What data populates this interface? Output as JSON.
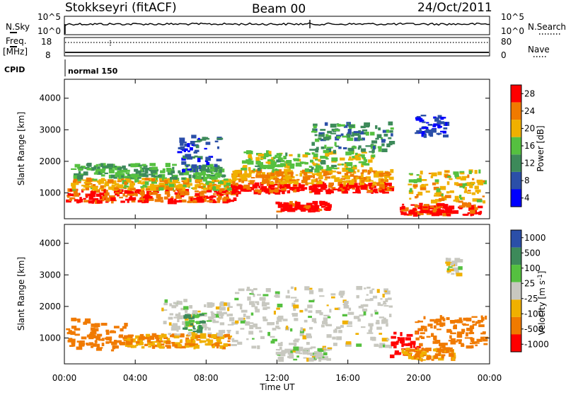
{
  "header": {
    "station": "Stokkseyri (fitACF)",
    "beam": "Beam 00",
    "date": "24/Oct/2011"
  },
  "noise_panel": {
    "left_label": "N.Sky",
    "right_label": "N.Search",
    "left_ticks": [
      "10^5",
      "10^0"
    ],
    "right_ticks": [
      "10^5",
      "10^0"
    ]
  },
  "freq_panel": {
    "left_label_1": "Freq.",
    "left_label_2": "[MHz]",
    "left_ticks": [
      "18",
      "8"
    ],
    "right_label": "Nave",
    "right_ticks": [
      "80",
      "0"
    ]
  },
  "cpid_panel": {
    "label": "CPID",
    "value": "normal 150"
  },
  "colors": {
    "power_scale": [
      "#0000ff",
      "#2b4fa8",
      "#3d8a5a",
      "#55c040",
      "#f0b000",
      "#f07a00",
      "#ff0000"
    ],
    "velocity_scale": [
      "#ff0000",
      "#f07a00",
      "#f0b000",
      "#c8c8c0",
      "#55c040",
      "#3d8a5a",
      "#2b4fa8"
    ]
  },
  "chart_data": [
    {
      "type": "heatmap",
      "title": "",
      "xlabel": "",
      "ylabel": "Slant Range [km]",
      "xlim": [
        0,
        24
      ],
      "ylim": [
        180,
        4600
      ],
      "x_ticks": [
        "00:00",
        "04:00",
        "08:00",
        "12:00",
        "16:00",
        "20:00",
        "00:00"
      ],
      "y_ticks": [
        "1000",
        "2000",
        "3000",
        "4000"
      ],
      "colorbar": {
        "label": "Power [dB]",
        "tick_labels": [
          "4",
          "8",
          "12",
          "16",
          "20",
          "24",
          "28"
        ]
      },
      "regions": [
        {
          "t": [
            0.2,
            9.8
          ],
          "r": [
            700,
            1100
          ],
          "value": 26
        },
        {
          "t": [
            0.5,
            9.5
          ],
          "r": [
            1100,
            1450
          ],
          "value": 20
        },
        {
          "t": [
            0.5,
            9.0
          ],
          "r": [
            1450,
            1900
          ],
          "value": 14
        },
        {
          "t": [
            6.5,
            8.8
          ],
          "r": [
            1700,
            2800
          ],
          "value": 8
        },
        {
          "t": [
            9.5,
            18.5
          ],
          "r": [
            1000,
            1300
          ],
          "value": 28
        },
        {
          "t": [
            9.5,
            18.5
          ],
          "r": [
            1300,
            1700
          ],
          "value": 22
        },
        {
          "t": [
            10.0,
            17.5
          ],
          "r": [
            1700,
            2300
          ],
          "value": 17
        },
        {
          "t": [
            12.0,
            15.0
          ],
          "r": [
            400,
            700
          ],
          "value": 28
        },
        {
          "t": [
            14.0,
            18.5
          ],
          "r": [
            2300,
            3200
          ],
          "value": 12
        },
        {
          "t": [
            19.0,
            23.5
          ],
          "r": [
            300,
            650
          ],
          "value": 27
        },
        {
          "t": [
            19.5,
            23.8
          ],
          "r": [
            700,
            1700
          ],
          "value": 20
        },
        {
          "t": [
            19.8,
            21.6
          ],
          "r": [
            2800,
            3450
          ],
          "value": 6
        }
      ]
    },
    {
      "type": "heatmap",
      "title": "",
      "xlabel": "Time UT",
      "ylabel": "Slant Range [km]",
      "xlim": [
        0,
        24
      ],
      "ylim": [
        180,
        4600
      ],
      "x_ticks": [
        "00:00",
        "04:00",
        "08:00",
        "12:00",
        "16:00",
        "20:00",
        "00:00"
      ],
      "y_ticks": [
        "1000",
        "2000",
        "3000",
        "4000"
      ],
      "colorbar": {
        "label": "Velocity [m s^-1]",
        "tick_labels": [
          "1000",
          "500",
          "100",
          "25",
          "-25",
          "-100",
          "-500",
          "-1000"
        ]
      },
      "regions": [
        {
          "t": [
            0.2,
            3.5
          ],
          "r": [
            600,
            1600
          ],
          "value": -400
        },
        {
          "t": [
            3.5,
            9.5
          ],
          "r": [
            700,
            1100
          ],
          "value": -100
        },
        {
          "t": [
            5.5,
            9.5
          ],
          "r": [
            1100,
            2200
          ],
          "value": 0
        },
        {
          "t": [
            6.8,
            8.0
          ],
          "r": [
            1200,
            1800
          ],
          "value": 100
        },
        {
          "t": [
            9.5,
            18.5
          ],
          "r": [
            700,
            2600
          ],
          "value": 0
        },
        {
          "t": [
            12.0,
            15.0
          ],
          "r": [
            300,
            700
          ],
          "value": 0
        },
        {
          "t": [
            18.5,
            20.0
          ],
          "r": [
            400,
            1200
          ],
          "value": -600
        },
        {
          "t": [
            19.8,
            23.8
          ],
          "r": [
            700,
            1700
          ],
          "value": -400
        },
        {
          "t": [
            19.0,
            22.0
          ],
          "r": [
            300,
            650
          ],
          "value": -100
        },
        {
          "t": [
            21.5,
            22.5
          ],
          "r": [
            3000,
            3500
          ],
          "value": 0
        }
      ]
    }
  ]
}
